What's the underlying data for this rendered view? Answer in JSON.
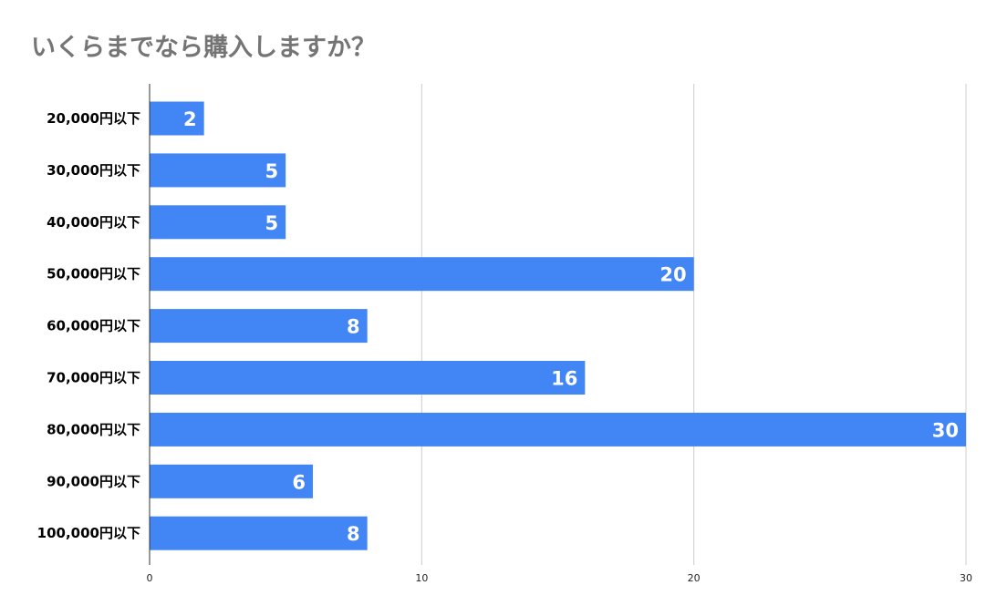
{
  "chart_data": {
    "type": "bar",
    "orientation": "horizontal",
    "title": "いくらまでなら購入しますか？",
    "categories": [
      "20,000円以下",
      "30,000円以下",
      "40,000円以下",
      "50,000円以下",
      "60,000円以下",
      "70,000円以下",
      "80,000円以下",
      "90,000円以下",
      "100,000円以下"
    ],
    "values": [
      2,
      5,
      5,
      20,
      8,
      16,
      30,
      6,
      8
    ],
    "xlim": [
      0,
      30
    ],
    "x_ticks": [
      0,
      10,
      20,
      30
    ],
    "grid": "vertical",
    "legend": "none",
    "data_labels": "inside-end",
    "bar_color": "#4285f4",
    "gridline_color": "#cccccc",
    "axis_color": "#333333"
  }
}
